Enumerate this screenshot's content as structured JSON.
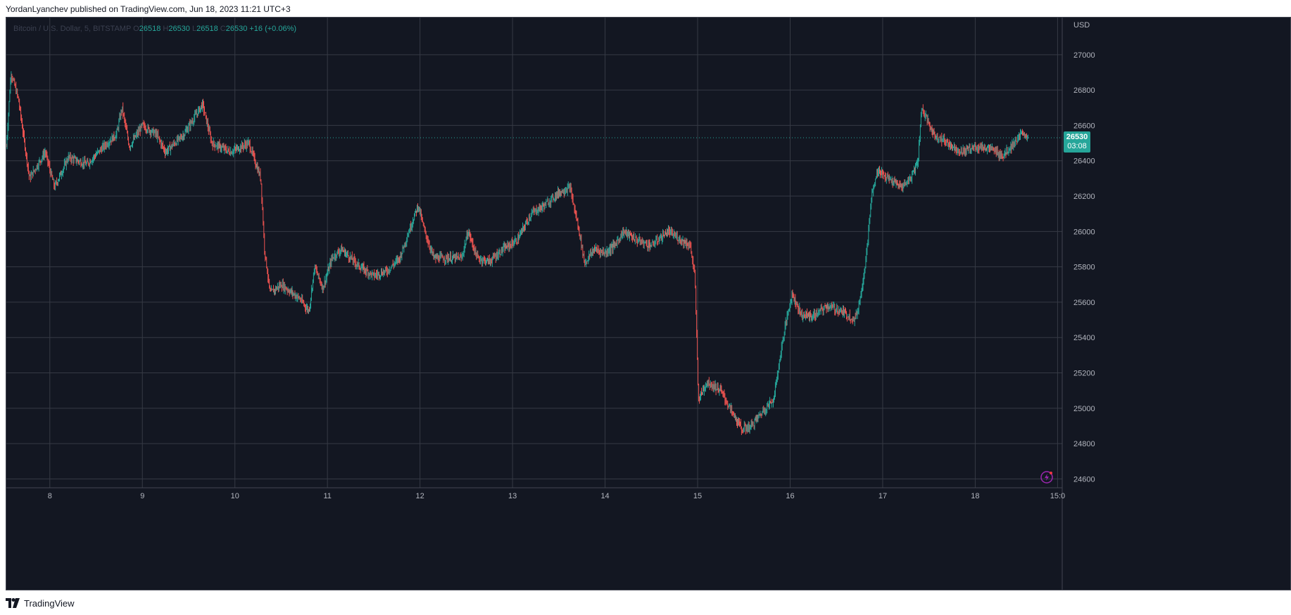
{
  "header": {
    "publish_text": "YordanLyanchev published on TradingView.com, Jun 18, 2023 11:21 UTC+3"
  },
  "footer": {
    "brand": "TradingView"
  },
  "legend": {
    "symbol": "Bitcoin / U.S. Dollar, 5, BITSTAMP",
    "o_label": "O",
    "o_value": "26518",
    "h_label": "H",
    "h_value": "26530",
    "l_label": "L",
    "l_value": "26518",
    "c_label": "C",
    "c_value": "26530",
    "change": "+16 (+0.06%)"
  },
  "price_tag": {
    "price": "26530",
    "countdown": "03:08"
  },
  "chart_data": {
    "type": "candlestick",
    "symbol": "Bitcoin / U.S. Dollar",
    "interval": "5",
    "exchange": "BITSTAMP",
    "currency_label": "USD",
    "y_ticks": [
      "27000",
      "26800",
      "26600",
      "26400",
      "26200",
      "26000",
      "25800",
      "25600",
      "25400",
      "25200",
      "25000",
      "24800",
      "24600"
    ],
    "x_ticks": [
      "8",
      "9",
      "10",
      "11",
      "12",
      "13",
      "14",
      "15",
      "16",
      "17",
      "18",
      "15:0"
    ],
    "ylim": [
      24550,
      27210
    ],
    "xlim_days": [
      7.53,
      18.94
    ],
    "last_price": 26530,
    "grid": true,
    "colors": {
      "up": "#26a69a",
      "down": "#ef5350",
      "background": "#131722",
      "grid": "#363a45",
      "text": "#b2b5be"
    },
    "price_path": [
      [
        7.53,
        26480
      ],
      [
        7.58,
        26900
      ],
      [
        7.66,
        26750
      ],
      [
        7.78,
        26300
      ],
      [
        7.95,
        26450
      ],
      [
        8.05,
        26250
      ],
      [
        8.2,
        26420
      ],
      [
        8.4,
        26380
      ],
      [
        8.58,
        26480
      ],
      [
        8.72,
        26550
      ],
      [
        8.78,
        26700
      ],
      [
        8.86,
        26480
      ],
      [
        9.0,
        26600
      ],
      [
        9.15,
        26550
      ],
      [
        9.25,
        26450
      ],
      [
        9.45,
        26550
      ],
      [
        9.65,
        26720
      ],
      [
        9.75,
        26500
      ],
      [
        9.95,
        26450
      ],
      [
        10.15,
        26500
      ],
      [
        10.28,
        26300
      ],
      [
        10.32,
        25900
      ],
      [
        10.38,
        25650
      ],
      [
        10.5,
        25700
      ],
      [
        10.7,
        25620
      ],
      [
        10.8,
        25550
      ],
      [
        10.86,
        25800
      ],
      [
        10.95,
        25680
      ],
      [
        11.05,
        25850
      ],
      [
        11.15,
        25900
      ],
      [
        11.35,
        25800
      ],
      [
        11.5,
        25750
      ],
      [
        11.65,
        25780
      ],
      [
        11.78,
        25850
      ],
      [
        11.88,
        26000
      ],
      [
        11.98,
        26150
      ],
      [
        12.05,
        26000
      ],
      [
        12.15,
        25850
      ],
      [
        12.3,
        25850
      ],
      [
        12.45,
        25850
      ],
      [
        12.52,
        26000
      ],
      [
        12.62,
        25850
      ],
      [
        12.75,
        25830
      ],
      [
        12.9,
        25900
      ],
      [
        13.05,
        25950
      ],
      [
        13.2,
        26100
      ],
      [
        13.35,
        26150
      ],
      [
        13.5,
        26220
      ],
      [
        13.62,
        26250
      ],
      [
        13.72,
        26000
      ],
      [
        13.78,
        25820
      ],
      [
        13.88,
        25900
      ],
      [
        14.0,
        25880
      ],
      [
        14.1,
        25920
      ],
      [
        14.2,
        26000
      ],
      [
        14.35,
        25950
      ],
      [
        14.5,
        25920
      ],
      [
        14.68,
        26000
      ],
      [
        14.83,
        25950
      ],
      [
        14.92,
        25920
      ],
      [
        14.97,
        25750
      ],
      [
        15.01,
        25050
      ],
      [
        15.1,
        25150
      ],
      [
        15.25,
        25100
      ],
      [
        15.38,
        24970
      ],
      [
        15.48,
        24880
      ],
      [
        15.58,
        24900
      ],
      [
        15.7,
        24980
      ],
      [
        15.82,
        25050
      ],
      [
        15.88,
        25250
      ],
      [
        15.93,
        25420
      ],
      [
        16.02,
        25650
      ],
      [
        16.12,
        25530
      ],
      [
        16.25,
        25520
      ],
      [
        16.4,
        25580
      ],
      [
        16.55,
        25550
      ],
      [
        16.7,
        25500
      ],
      [
        16.75,
        25600
      ],
      [
        16.82,
        25850
      ],
      [
        16.88,
        26200
      ],
      [
        16.95,
        26350
      ],
      [
        17.05,
        26300
      ],
      [
        17.2,
        26250
      ],
      [
        17.3,
        26300
      ],
      [
        17.38,
        26400
      ],
      [
        17.42,
        26700
      ],
      [
        17.55,
        26550
      ],
      [
        17.7,
        26500
      ],
      [
        17.85,
        26450
      ],
      [
        18.0,
        26480
      ],
      [
        18.15,
        26470
      ],
      [
        18.3,
        26430
      ],
      [
        18.42,
        26500
      ],
      [
        18.52,
        26560
      ],
      [
        18.57,
        26530
      ]
    ]
  }
}
